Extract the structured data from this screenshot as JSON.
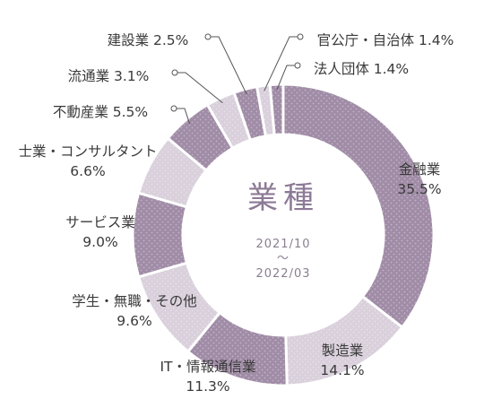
{
  "chart_data": {
    "type": "pie",
    "title": "業種",
    "subtitle_lines": [
      "2021/10",
      "～",
      "2022/03"
    ],
    "series": [
      {
        "name": "金融業",
        "value_label": "35.5%",
        "value": 35.5,
        "color": "#a08ca6"
      },
      {
        "name": "製造業",
        "value_label": "14.1%",
        "value": 14.1,
        "color": "#d9d0dc"
      },
      {
        "name": "IT・情報通信業",
        "value_label": "11.3%",
        "value": 11.3,
        "color": "#a08ca6"
      },
      {
        "name": "学生・無職・その他",
        "value_label": "9.6%",
        "value": 9.6,
        "color": "#d9d0dc"
      },
      {
        "name": "サービス業",
        "value_label": "9.0%",
        "value": 9.0,
        "color": "#a08ca6"
      },
      {
        "name": "士業・コンサルタント",
        "value_label": "6.6%",
        "value": 6.6,
        "color": "#d9d0dc"
      },
      {
        "name": "不動産業",
        "value_label": "5.5%",
        "value": 5.5,
        "color": "#a08ca6"
      },
      {
        "name": "流通業",
        "value_label": "3.1%",
        "value": 3.1,
        "color": "#d9d0dc"
      },
      {
        "name": "建設業",
        "value_label": "2.5%",
        "value": 2.5,
        "color": "#a08ca6"
      },
      {
        "name": "官公庁・自治体",
        "value_label": "1.4%",
        "value": 1.4,
        "color": "#d9d0dc"
      },
      {
        "name": "法人団体",
        "value_label": "1.4%",
        "value": 1.4,
        "color": "#a08ca6"
      }
    ]
  }
}
